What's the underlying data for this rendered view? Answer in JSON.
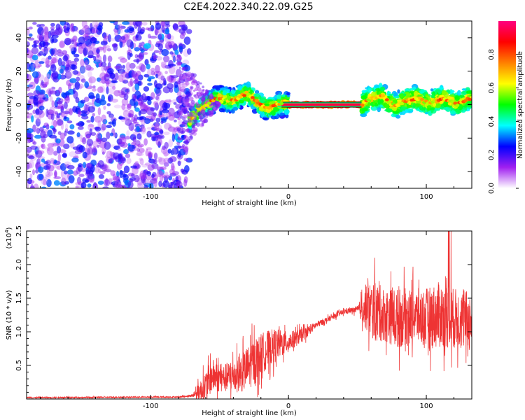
{
  "figure": {
    "title": "C2E4.2022.340.22.09.G25"
  },
  "chart_data": [
    {
      "type": "heatmap",
      "xlabel": "Height of straight line (km)",
      "ylabel": "Frequency (Hz)",
      "xlim": [
        -190,
        133
      ],
      "ylim": [
        -50,
        50
      ],
      "x_ticks": [
        -100,
        0,
        100
      ],
      "y_ticks": [
        -40,
        -20,
        0,
        20,
        40
      ],
      "x_tick_labels": [
        "-100",
        "0",
        "100"
      ],
      "y_tick_labels": [
        "-40",
        "-20",
        "0",
        "20",
        "40"
      ],
      "colorbar": {
        "label": "Normalized spectral amplitude",
        "range": [
          0,
          1
        ],
        "ticks": [
          0.0,
          0.2,
          0.4,
          0.6,
          0.8
        ],
        "tick_labels": [
          "0.0",
          "0.2",
          "0.4",
          "0.6",
          "0.8"
        ],
        "colors": [
          "#ffffff",
          "#a020f0",
          "#0000ff",
          "#00ffff",
          "#00ff00",
          "#ffff00",
          "#ff8000",
          "#ff0000",
          "#ff0080"
        ]
      },
      "regions": [
        {
          "x_range": [
            -190,
            -72
          ],
          "freq_spread": [
            -50,
            50
          ],
          "amplitude": [
            0.05,
            0.35
          ]
        },
        {
          "x_range": [
            -72,
            0
          ],
          "freq_spread": [
            -8,
            8
          ],
          "amplitude": [
            0.2,
            0.8
          ]
        },
        {
          "x_range": [
            0,
            53
          ],
          "freq_spread": [
            -1,
            1
          ],
          "amplitude": [
            0.7,
            1.0
          ]
        },
        {
          "x_range": [
            53,
            133
          ],
          "freq_spread": [
            -8,
            8
          ],
          "amplitude": [
            0.3,
            0.75
          ]
        }
      ],
      "ridge_trace": [
        [
          -72,
          -10
        ],
        [
          -68,
          -6
        ],
        [
          -64,
          -2
        ],
        [
          -60,
          0
        ],
        [
          -55,
          2
        ],
        [
          -50,
          4
        ],
        [
          -45,
          3
        ],
        [
          -40,
          2
        ],
        [
          -35,
          5
        ],
        [
          -30,
          7
        ],
        [
          -25,
          3
        ],
        [
          -20,
          0
        ],
        [
          -15,
          -2
        ],
        [
          -10,
          -1
        ],
        [
          -5,
          1
        ],
        [
          0,
          0
        ],
        [
          10,
          0
        ],
        [
          20,
          0
        ],
        [
          30,
          0
        ],
        [
          40,
          0
        ],
        [
          53,
          0
        ],
        [
          58,
          3
        ],
        [
          63,
          4
        ],
        [
          68,
          5
        ],
        [
          73,
          1
        ],
        [
          78,
          -1
        ],
        [
          83,
          2
        ],
        [
          88,
          3
        ],
        [
          93,
          4
        ],
        [
          98,
          2
        ],
        [
          103,
          1
        ],
        [
          108,
          3
        ],
        [
          113,
          4
        ],
        [
          118,
          2
        ],
        [
          123,
          0
        ],
        [
          128,
          3
        ],
        [
          133,
          4
        ]
      ]
    },
    {
      "type": "line",
      "xlabel": "Height of straight line (km)",
      "ylabel": "SNR (10 * v/v)",
      "y_multiplier_label": "(x10",
      "y_multiplier_exp": "4",
      "y_multiplier_close": ")",
      "xlim": [
        -190,
        133
      ],
      "ylim": [
        0,
        2.5
      ],
      "x_ticks": [
        -100,
        0,
        100
      ],
      "y_ticks": [
        0.5,
        1.0,
        1.5,
        2.0,
        2.5
      ],
      "x_tick_labels": [
        "-100",
        "0",
        "100"
      ],
      "y_tick_labels": [
        "0.5",
        "1.0",
        "1.5",
        "2.0",
        "2.5"
      ],
      "series": [
        {
          "color": "#ee3333",
          "envelope_x": [
            -190,
            -80,
            -70,
            -62,
            -55,
            -48,
            -40,
            -33,
            -25,
            -18,
            -10,
            0,
            10,
            20,
            30,
            40,
            50,
            58,
            63,
            70,
            80,
            90,
            100,
            110,
            120,
            133
          ],
          "envelope_mean": [
            0.02,
            0.03,
            0.05,
            0.15,
            0.35,
            0.3,
            0.35,
            0.4,
            0.55,
            0.7,
            0.8,
            0.85,
            0.95,
            1.1,
            1.2,
            1.3,
            1.33,
            1.35,
            1.3,
            1.25,
            1.2,
            1.25,
            1.2,
            1.25,
            1.2,
            1.15
          ],
          "envelope_noise": [
            0.01,
            0.01,
            0.02,
            0.2,
            0.25,
            0.2,
            0.25,
            0.3,
            0.35,
            0.3,
            0.25,
            0.15,
            0.1,
            0.05,
            0.04,
            0.04,
            0.05,
            0.4,
            0.45,
            0.4,
            0.45,
            0.4,
            0.45,
            0.5,
            0.45,
            0.45
          ],
          "peak_value": 2.5
        }
      ]
    }
  ]
}
